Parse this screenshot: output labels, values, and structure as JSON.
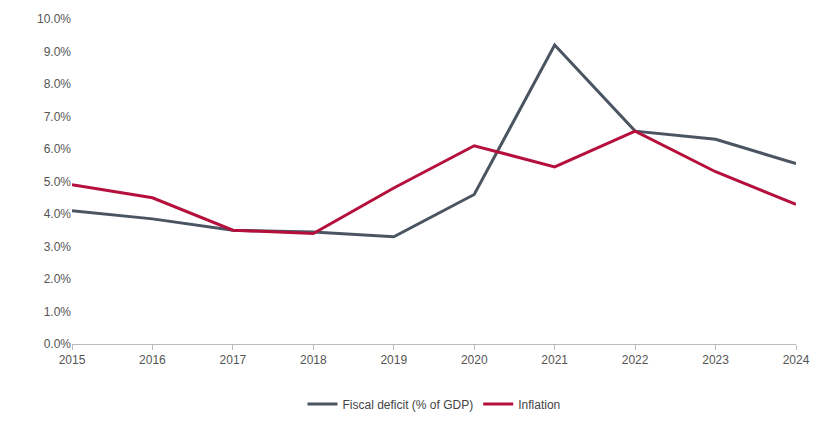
{
  "chart_data": {
    "type": "line",
    "categories": [
      "2015",
      "2016",
      "2017",
      "2018",
      "2019",
      "2020",
      "2021",
      "2022",
      "2023",
      "2024"
    ],
    "series": [
      {
        "name": "Fiscal deficit (% of GDP)",
        "color": "#4a5561",
        "values": [
          4.1,
          3.85,
          3.5,
          3.45,
          3.3,
          4.6,
          9.2,
          6.55,
          6.3,
          5.55
        ]
      },
      {
        "name": "Inflation",
        "color": "#b5103c",
        "values": [
          4.9,
          4.5,
          3.5,
          3.4,
          4.8,
          6.1,
          5.45,
          6.55,
          5.3,
          4.3
        ]
      }
    ],
    "ylim": [
      0,
      10
    ],
    "yticks": [
      {
        "value": 0,
        "label": "0.0%"
      },
      {
        "value": 1,
        "label": "1.0%"
      },
      {
        "value": 2,
        "label": "2.0%"
      },
      {
        "value": 3,
        "label": "3.0%"
      },
      {
        "value": 4,
        "label": "4.0%"
      },
      {
        "value": 5,
        "label": "5.0%"
      },
      {
        "value": 6,
        "label": "6.0%"
      },
      {
        "value": 7,
        "label": "7.0%"
      },
      {
        "value": 8,
        "label": "8.0%"
      },
      {
        "value": 9,
        "label": "9.0%"
      },
      {
        "value": 10,
        "label": "10.0%"
      }
    ],
    "grid": false,
    "legend": "bottom"
  }
}
